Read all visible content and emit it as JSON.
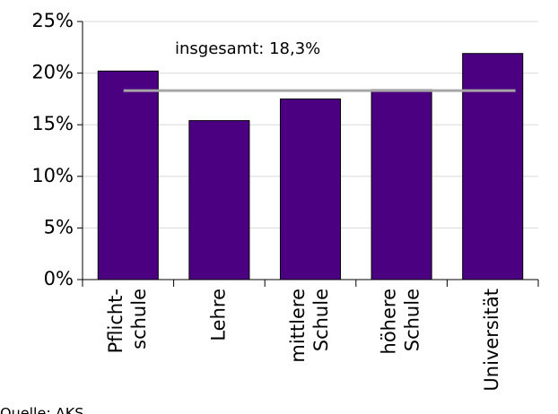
{
  "chart_data": {
    "type": "bar",
    "categories": [
      [
        "Pflicht-",
        "schule"
      ],
      [
        "Lehre"
      ],
      [
        "mittlere",
        "Schule"
      ],
      [
        "höhere",
        "Schule"
      ],
      [
        "Universität"
      ]
    ],
    "values": [
      20.2,
      15.4,
      17.5,
      18.4,
      21.9
    ],
    "color": "#4b0082",
    "ylim": [
      0,
      25
    ],
    "yticks": [
      {
        "value": 0,
        "label": "0%"
      },
      {
        "value": 5,
        "label": "5%"
      },
      {
        "value": 10,
        "label": "10%"
      },
      {
        "value": 15,
        "label": "15%"
      },
      {
        "value": 20,
        "label": "20%"
      },
      {
        "value": 25,
        "label": "25%"
      }
    ],
    "grid": true,
    "reference_line": {
      "value": 18.3,
      "label": "insgesamt: 18,3%",
      "color": "#a6a6a6"
    },
    "source": "Quelle: AKS"
  }
}
